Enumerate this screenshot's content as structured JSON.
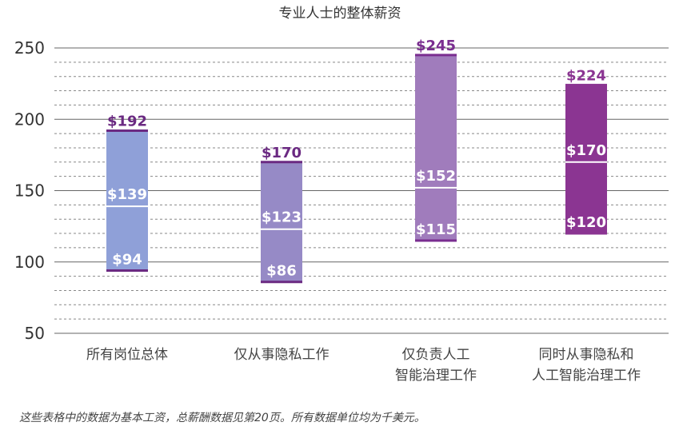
{
  "chart_data": {
    "type": "bar",
    "title": "专业人士的整体薪资",
    "footnote": "这些表格中的数据为基本工资，总薪酬数据见第20页。所有数据单位均为千美元。",
    "ylim": [
      50,
      250
    ],
    "yticks": [
      50,
      100,
      150,
      200,
      250
    ],
    "grid": true,
    "categories": [
      [
        "所有岗位总体"
      ],
      [
        "仅从事隐私工作"
      ],
      [
        "仅负责人工",
        "智能治理工作"
      ],
      [
        "同时从事隐私和",
        "人工智能治理工作"
      ]
    ],
    "series": [
      {
        "low": 94,
        "median": 139,
        "high": 192,
        "labels": {
          "low": "$94",
          "median": "$139",
          "high": "$192"
        },
        "color": "#8fa0d8",
        "accent": "#6b2a82"
      },
      {
        "low": 86,
        "median": 123,
        "high": 170,
        "labels": {
          "low": "$86",
          "median": "$123",
          "high": "$170"
        },
        "color": "#968ac6",
        "accent": "#6b2a82"
      },
      {
        "low": 115,
        "median": 152,
        "high": 245,
        "labels": {
          "low": "$115",
          "median": "$152",
          "high": "$245"
        },
        "color": "#a07cbc",
        "accent": "#7a2e90"
      },
      {
        "low": 120,
        "median": 170,
        "high": 224,
        "labels": {
          "low": "$120",
          "median": "$170",
          "high": "$224"
        },
        "color": "#8b3592",
        "accent": "#8b3592"
      }
    ]
  }
}
